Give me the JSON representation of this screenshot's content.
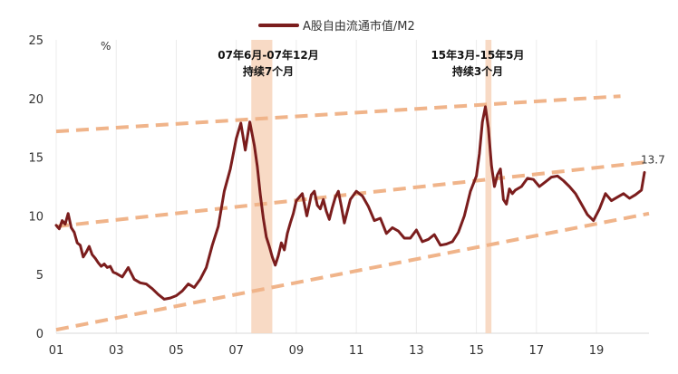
{
  "chart_data": {
    "type": "line",
    "title": "",
    "xlabel": "",
    "ylabel": "",
    "y_unit": "%",
    "ylim": [
      0,
      25
    ],
    "yticks": [
      0,
      5,
      10,
      15,
      20,
      25
    ],
    "xlim": [
      2001.0,
      2020.75
    ],
    "x_tick_labels": [
      "01",
      "03",
      "05",
      "07",
      "09",
      "11",
      "13",
      "15",
      "17",
      "19"
    ],
    "x_tick_years": [
      2001,
      2003,
      2005,
      2007,
      2009,
      2011,
      2013,
      2015,
      2017,
      2019
    ],
    "grid": "vertical-light",
    "legend_position": "top-center",
    "colors": {
      "series": "#7b1d1d",
      "trend": "#f0b48a",
      "highlight": "#f7d3bb"
    },
    "series": [
      {
        "name": "A股自由流通市值/M2",
        "x": [
          2001.0,
          2001.1,
          2001.2,
          2001.3,
          2001.4,
          2001.5,
          2001.6,
          2001.7,
          2001.8,
          2001.9,
          2002.0,
          2002.1,
          2002.2,
          2002.3,
          2002.4,
          2002.5,
          2002.6,
          2002.7,
          2002.8,
          2002.9,
          2003.0,
          2003.2,
          2003.4,
          2003.6,
          2003.8,
          2004.0,
          2004.2,
          2004.4,
          2004.6,
          2004.8,
          2005.0,
          2005.2,
          2005.4,
          2005.6,
          2005.8,
          2006.0,
          2006.2,
          2006.4,
          2006.6,
          2006.8,
          2007.0,
          2007.15,
          2007.3,
          2007.45,
          2007.6,
          2007.7,
          2007.8,
          2007.9,
          2008.0,
          2008.1,
          2008.2,
          2008.3,
          2008.4,
          2008.5,
          2008.6,
          2008.7,
          2008.8,
          2008.9,
          2009.0,
          2009.2,
          2009.35,
          2009.5,
          2009.6,
          2009.7,
          2009.8,
          2009.9,
          2010.0,
          2010.1,
          2010.2,
          2010.3,
          2010.4,
          2010.5,
          2010.6,
          2010.8,
          2011.0,
          2011.2,
          2011.4,
          2011.6,
          2011.8,
          2012.0,
          2012.2,
          2012.4,
          2012.6,
          2012.8,
          2013.0,
          2013.2,
          2013.4,
          2013.6,
          2013.8,
          2014.0,
          2014.2,
          2014.4,
          2014.6,
          2014.8,
          2015.0,
          2015.1,
          2015.2,
          2015.3,
          2015.4,
          2015.5,
          2015.6,
          2015.7,
          2015.8,
          2015.9,
          2016.0,
          2016.1,
          2016.2,
          2016.3,
          2016.5,
          2016.7,
          2016.9,
          2017.1,
          2017.3,
          2017.5,
          2017.7,
          2017.9,
          2018.1,
          2018.3,
          2018.5,
          2018.7,
          2018.9,
          2019.1,
          2019.3,
          2019.5,
          2019.7,
          2019.9,
          2020.1,
          2020.3,
          2020.5,
          2020.6
        ],
        "y": [
          9.2,
          8.9,
          9.6,
          9.3,
          10.2,
          9.0,
          8.6,
          7.7,
          7.5,
          6.5,
          6.9,
          7.4,
          6.7,
          6.4,
          6.0,
          5.7,
          5.9,
          5.6,
          5.7,
          5.2,
          5.1,
          4.8,
          5.6,
          4.6,
          4.3,
          4.2,
          3.8,
          3.3,
          2.9,
          3.0,
          3.2,
          3.6,
          4.2,
          3.9,
          4.6,
          5.6,
          7.5,
          9.1,
          12.1,
          14.0,
          16.6,
          17.9,
          15.6,
          18.0,
          16.0,
          14.2,
          11.8,
          9.8,
          8.2,
          7.4,
          6.5,
          5.8,
          6.6,
          7.7,
          7.1,
          8.5,
          9.4,
          10.2,
          11.3,
          11.9,
          10.0,
          11.8,
          12.1,
          10.9,
          10.6,
          11.4,
          10.4,
          9.7,
          10.7,
          11.6,
          12.1,
          10.8,
          9.4,
          11.4,
          12.1,
          11.7,
          10.8,
          9.6,
          9.8,
          8.5,
          9.0,
          8.7,
          8.1,
          8.1,
          8.8,
          7.8,
          8.0,
          8.4,
          7.5,
          7.6,
          7.8,
          8.6,
          10.0,
          12.1,
          13.4,
          15.3,
          18.0,
          19.3,
          17.5,
          14.3,
          12.5,
          13.5,
          14.0,
          11.4,
          11.0,
          12.3,
          11.9,
          12.2,
          12.5,
          13.2,
          13.1,
          12.5,
          12.9,
          13.3,
          13.4,
          13.0,
          12.5,
          11.9,
          11.0,
          10.1,
          9.6,
          10.6,
          11.9,
          11.3,
          11.6,
          11.9,
          11.5,
          11.8,
          12.2,
          13.7
        ]
      }
    ],
    "trend_lines": [
      {
        "from": [
          2001.0,
          17.2
        ],
        "to": [
          2019.8,
          20.2
        ]
      },
      {
        "from": [
          2001.0,
          9.1
        ],
        "to": [
          2020.75,
          14.6
        ]
      },
      {
        "from": [
          2001.0,
          0.3
        ],
        "to": [
          2020.75,
          10.2
        ]
      }
    ],
    "highlight_bands": [
      {
        "x0": 2007.5,
        "x1": 2008.2
      },
      {
        "x0": 2015.3,
        "x1": 2015.5
      }
    ],
    "annotations": [
      {
        "line1": "07年6月-07年12月",
        "line2": "持续7个月"
      },
      {
        "line1": "15年3月-15年5月",
        "line2": "持续3个月"
      }
    ],
    "end_label": "13.7"
  }
}
